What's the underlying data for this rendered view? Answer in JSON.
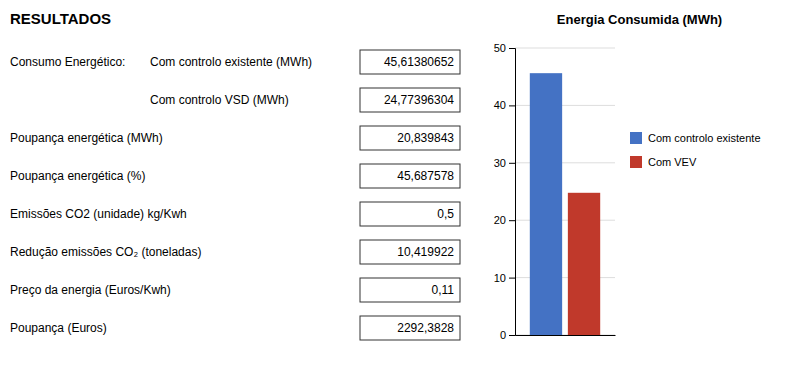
{
  "chart_data": [
    {
      "type": "table",
      "title": "RESULTADOS",
      "labels": [
        "Consumo Energético:",
        null,
        "Poupança energética (MWh)",
        "Poupança energética (%)",
        "Emissões CO2 (unidade) kg/Kwh",
        "Redução emissões CO₂ (toneladas)",
        "Preço da energia (Euros/Kwh)",
        "Poupança (Euros)"
      ],
      "sublabels": [
        "Com controlo existente (MWh)",
        "Com controlo VSD (MWh)",
        null,
        null,
        null,
        null,
        null,
        null
      ],
      "values": [
        45.61380652,
        24.77396304,
        20.839843,
        45.687578,
        0.5,
        10.419922,
        0.11,
        2292.3828
      ],
      "value_labels": [
        "45,61380652",
        "24,77396304",
        "20,839843",
        "45,687578",
        "0,5",
        "10,419922",
        "0,11",
        "2292,3828"
      ]
    },
    {
      "type": "bar",
      "title": "Energia Consumida (MWh)",
      "categories": [
        null
      ],
      "series": [
        {
          "name": "Com controlo existente",
          "color": "#4472C4",
          "values": [
            45.61380652
          ]
        },
        {
          "name": "Com VEV",
          "color": "#C0392B",
          "values": [
            24.77396304
          ]
        }
      ],
      "ylim": [
        0,
        50
      ],
      "yticks": [
        0,
        10,
        20,
        30,
        40,
        50
      ],
      "grid": true,
      "legend": "right",
      "tick_labels": "y"
    }
  ]
}
